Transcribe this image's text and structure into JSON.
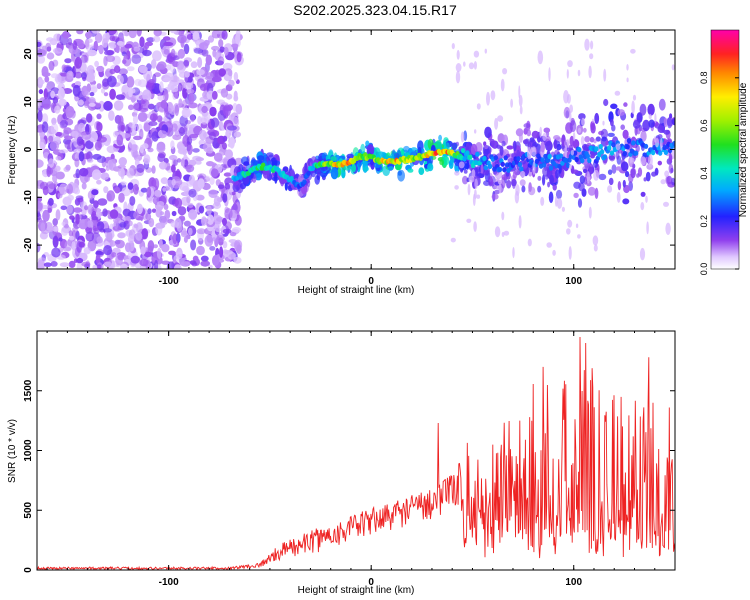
{
  "title": "S202.2025.323.04.15.R17",
  "chart_data": [
    {
      "type": "heatmap",
      "title": "S202.2025.323.04.15.R17",
      "xlabel": "Height of straight line (km)",
      "ylabel": "Frequency (Hz)",
      "xlim": [
        -165,
        150
      ],
      "ylim": [
        -25,
        25
      ],
      "xticks": [
        -100,
        0,
        100
      ],
      "xtick_labels": [
        "-100",
        "0",
        "100"
      ],
      "yticks": [
        -20,
        -10,
        0,
        10,
        20
      ],
      "ytick_labels": [
        "-20",
        "-10",
        "0",
        "10",
        "20"
      ],
      "colorbar": {
        "label": "Normalized spectral amplitude",
        "range": [
          0,
          1
        ],
        "ticks": [
          0.0,
          0.2,
          0.4,
          0.6,
          0.8
        ],
        "tick_labels": [
          "0.0",
          "0.2",
          "0.4",
          "0.6",
          "0.8"
        ]
      },
      "noise_region_x": [
        -165,
        -65
      ],
      "signal_track": [
        {
          "x": -68,
          "f": -6.0,
          "a": 0.35
        },
        {
          "x": -62,
          "f": -5.0,
          "a": 0.45
        },
        {
          "x": -55,
          "f": -3.5,
          "a": 0.55
        },
        {
          "x": -48,
          "f": -4.0,
          "a": 0.45
        },
        {
          "x": -42,
          "f": -5.5,
          "a": 0.4
        },
        {
          "x": -35,
          "f": -8.0,
          "a": 0.3
        },
        {
          "x": -30,
          "f": -4.0,
          "a": 0.35
        },
        {
          "x": -25,
          "f": -3.0,
          "a": 0.55
        },
        {
          "x": -18,
          "f": -3.0,
          "a": 0.8
        },
        {
          "x": -12,
          "f": -3.0,
          "a": 0.85
        },
        {
          "x": -6,
          "f": -1.5,
          "a": 0.7
        },
        {
          "x": 0,
          "f": -1.5,
          "a": 0.6
        },
        {
          "x": 5,
          "f": -2.5,
          "a": 0.75
        },
        {
          "x": 12,
          "f": -2.5,
          "a": 0.85
        },
        {
          "x": 18,
          "f": -2.0,
          "a": 0.7
        },
        {
          "x": 25,
          "f": -1.5,
          "a": 0.75
        },
        {
          "x": 32,
          "f": -0.5,
          "a": 0.9
        },
        {
          "x": 38,
          "f": -0.5,
          "a": 0.85
        },
        {
          "x": 45,
          "f": -1.5,
          "a": 0.45
        },
        {
          "x": 52,
          "f": -2.0,
          "a": 0.4
        },
        {
          "x": 60,
          "f": -3.0,
          "a": 0.3
        },
        {
          "x": 70,
          "f": -3.0,
          "a": 0.3
        },
        {
          "x": 80,
          "f": -2.0,
          "a": 0.3
        },
        {
          "x": 90,
          "f": -3.0,
          "a": 0.35
        },
        {
          "x": 100,
          "f": -1.5,
          "a": 0.3
        },
        {
          "x": 110,
          "f": -1.0,
          "a": 0.35
        },
        {
          "x": 120,
          "f": 0.0,
          "a": 0.35
        },
        {
          "x": 130,
          "f": 0.5,
          "a": 0.3
        },
        {
          "x": 140,
          "f": 0.0,
          "a": 0.35
        },
        {
          "x": 148,
          "f": 1.0,
          "a": 0.3
        }
      ]
    },
    {
      "type": "line",
      "xlabel": "Height of straight line (km)",
      "ylabel": "SNR (10 * v/v)",
      "xlim": [
        -165,
        150
      ],
      "ylim": [
        0,
        2000
      ],
      "xticks": [
        -100,
        0,
        100
      ],
      "xtick_labels": [
        "-100",
        "0",
        "100"
      ],
      "yticks": [
        0,
        500,
        1000,
        1500
      ],
      "ytick_labels": [
        "0",
        "500",
        "1000",
        "1500"
      ],
      "color": "#ee2222",
      "series": [
        {
          "name": "SNR",
          "envelope": [
            {
              "x": -165,
              "base": 5,
              "peak": 25
            },
            {
              "x": -70,
              "base": 5,
              "peak": 25
            },
            {
              "x": -55,
              "base": 20,
              "peak": 60
            },
            {
              "x": -45,
              "base": 80,
              "peak": 220
            },
            {
              "x": -30,
              "base": 130,
              "peak": 330
            },
            {
              "x": -15,
              "base": 200,
              "peak": 420
            },
            {
              "x": 0,
              "base": 280,
              "peak": 520
            },
            {
              "x": 15,
              "base": 350,
              "peak": 600
            },
            {
              "x": 30,
              "base": 420,
              "peak": 700
            },
            {
              "x": 40,
              "base": 500,
              "peak": 800
            },
            {
              "x": 50,
              "base": 400,
              "peak": 1150
            },
            {
              "x": 60,
              "base": 350,
              "peak": 1300
            },
            {
              "x": 70,
              "base": 300,
              "peak": 1450
            },
            {
              "x": 80,
              "base": 280,
              "peak": 1550
            },
            {
              "x": 90,
              "base": 260,
              "peak": 1650
            },
            {
              "x": 100,
              "base": 250,
              "peak": 1800
            },
            {
              "x": 110,
              "base": 250,
              "peak": 1850
            },
            {
              "x": 120,
              "base": 240,
              "peak": 1750
            },
            {
              "x": 130,
              "base": 240,
              "peak": 1700
            },
            {
              "x": 140,
              "base": 230,
              "peak": 1650
            },
            {
              "x": 150,
              "base": 220,
              "peak": 1500
            }
          ],
          "notable_peaks": [
            {
              "x": 33,
              "y": 1230
            },
            {
              "x": 85,
              "y": 1700
            },
            {
              "x": 103,
              "y": 1950
            },
            {
              "x": 106,
              "y": 1900
            },
            {
              "x": 137,
              "y": 1780
            }
          ]
        }
      ]
    }
  ]
}
